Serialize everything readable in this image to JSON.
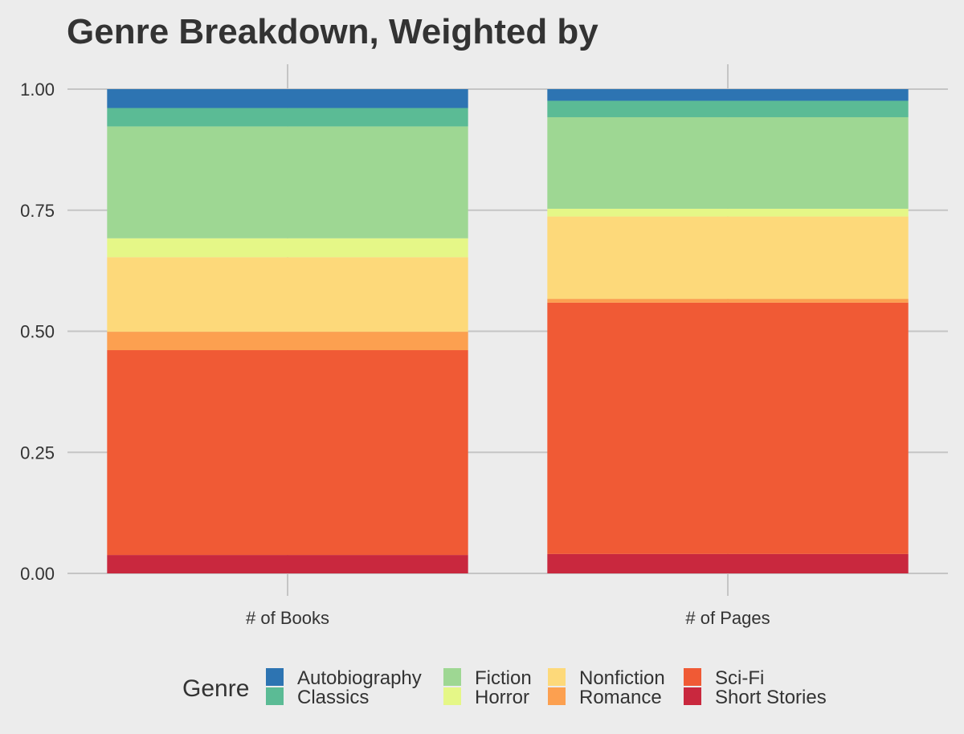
{
  "chart_data": {
    "type": "bar",
    "stacked": true,
    "title": "Genre Breakdown, Weighted by",
    "xlabel": "",
    "ylabel": "",
    "ylim": [
      0,
      1
    ],
    "yticks": [
      "0.00",
      "0.25",
      "0.50",
      "0.75",
      "1.00"
    ],
    "categories": [
      "# of Books",
      "# of Pages"
    ],
    "grid": true,
    "legend": {
      "title": "Genre",
      "placement": "bottom"
    },
    "series": [
      {
        "name": "Short Stories",
        "color": "#c9283e",
        "values": [
          0.038,
          0.04
        ]
      },
      {
        "name": "Sci-Fi",
        "color": "#f05a35",
        "values": [
          0.423,
          0.519
        ]
      },
      {
        "name": "Romance",
        "color": "#fca050",
        "values": [
          0.038,
          0.008
        ]
      },
      {
        "name": "Nonfiction",
        "color": "#fdd97a",
        "values": [
          0.154,
          0.17
        ]
      },
      {
        "name": "Horror",
        "color": "#e5f787",
        "values": [
          0.039,
          0.016
        ]
      },
      {
        "name": "Fiction",
        "color": "#9ed793",
        "values": [
          0.231,
          0.189
        ]
      },
      {
        "name": "Classics",
        "color": "#5bbb95",
        "values": [
          0.038,
          0.034
        ]
      },
      {
        "name": "Autobiography",
        "color": "#2d74b2",
        "values": [
          0.039,
          0.024
        ]
      }
    ],
    "legend_order": [
      "Autobiography",
      "Classics",
      "Fiction",
      "Horror",
      "Nonfiction",
      "Romance",
      "Sci-Fi",
      "Short Stories"
    ]
  }
}
